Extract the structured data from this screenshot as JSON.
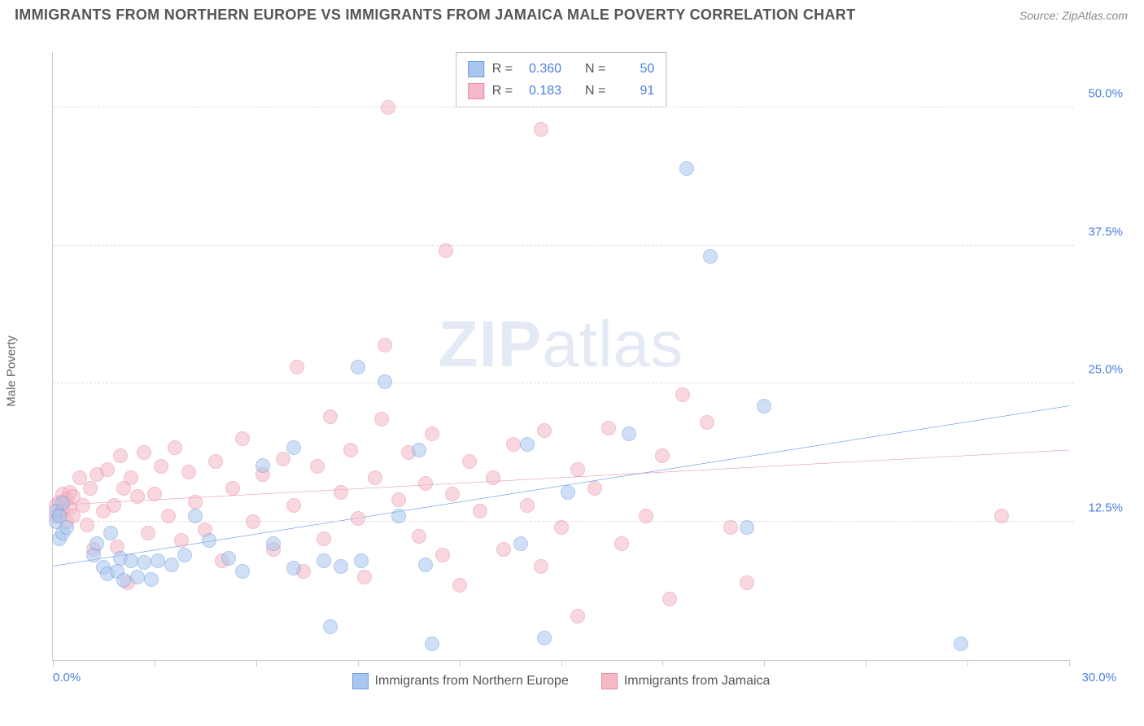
{
  "title": "IMMIGRANTS FROM NORTHERN EUROPE VS IMMIGRANTS FROM JAMAICA MALE POVERTY CORRELATION CHART",
  "source": "Source: ZipAtlas.com",
  "y_axis_label": "Male Poverty",
  "watermark": {
    "strong": "ZIP",
    "light": "atlas"
  },
  "chart": {
    "type": "scatter",
    "xlim": [
      0,
      30
    ],
    "ylim": [
      0,
      55
    ],
    "x_ticks": [
      0,
      3,
      6,
      9,
      12,
      15,
      18,
      21,
      24,
      27,
      30
    ],
    "y_gridlines": [
      12.5,
      25.0,
      37.5,
      50.0
    ],
    "y_tick_labels": [
      "12.5%",
      "25.0%",
      "37.5%",
      "50.0%"
    ],
    "x_start_label": "0.0%",
    "x_end_label": "30.0%",
    "background_color": "#ffffff",
    "grid_color": "#dddddd",
    "axis_color": "#cccccc",
    "tick_label_color": "#4a7fe0",
    "marker_radius": 9,
    "marker_opacity": 0.55,
    "line_width": 2
  },
  "series": [
    {
      "key": "northern_europe",
      "label": "Immigrants from Northern Europe",
      "fill": "#a9c6ee",
      "stroke": "#6f9fe0",
      "line_color": "#1f66e5",
      "R": "0.360",
      "N": "50",
      "trend": {
        "x1": 0,
        "y1": 8.5,
        "x2": 30,
        "y2": 23.0
      },
      "points": [
        [
          0.1,
          12.5
        ],
        [
          0.1,
          13.5
        ],
        [
          0.2,
          11.0
        ],
        [
          0.2,
          13.0
        ],
        [
          0.3,
          11.5
        ],
        [
          0.3,
          14.2
        ],
        [
          0.4,
          12.0
        ],
        [
          1.2,
          9.5
        ],
        [
          1.3,
          10.5
        ],
        [
          1.5,
          8.4
        ],
        [
          1.6,
          7.8
        ],
        [
          1.7,
          11.5
        ],
        [
          1.9,
          8.0
        ],
        [
          2.0,
          9.2
        ],
        [
          2.1,
          7.2
        ],
        [
          2.3,
          9.0
        ],
        [
          2.5,
          7.5
        ],
        [
          2.7,
          8.8
        ],
        [
          2.9,
          7.3
        ],
        [
          3.1,
          9.0
        ],
        [
          3.5,
          8.6
        ],
        [
          3.9,
          9.5
        ],
        [
          4.2,
          13.0
        ],
        [
          4.6,
          10.8
        ],
        [
          5.2,
          9.2
        ],
        [
          5.6,
          8.0
        ],
        [
          6.2,
          17.6
        ],
        [
          6.5,
          10.5
        ],
        [
          7.1,
          8.3
        ],
        [
          7.1,
          19.2
        ],
        [
          8.0,
          9.0
        ],
        [
          8.2,
          3.0
        ],
        [
          8.5,
          8.5
        ],
        [
          9.0,
          26.5
        ],
        [
          9.1,
          9.0
        ],
        [
          9.8,
          25.2
        ],
        [
          10.2,
          13.0
        ],
        [
          10.8,
          19.0
        ],
        [
          11.0,
          8.6
        ],
        [
          11.2,
          1.5
        ],
        [
          13.8,
          10.5
        ],
        [
          14.0,
          19.5
        ],
        [
          14.5,
          2.0
        ],
        [
          15.2,
          15.2
        ],
        [
          17.0,
          20.5
        ],
        [
          18.7,
          44.5
        ],
        [
          19.4,
          36.5
        ],
        [
          20.5,
          12.0
        ],
        [
          21.0,
          23.0
        ],
        [
          26.8,
          1.5
        ]
      ]
    },
    {
      "key": "jamaica",
      "label": "Immigrants from Jamaica",
      "fill": "#f4b8c6",
      "stroke": "#e88ca3",
      "line_color": "#e36f8f",
      "R": "0.183",
      "N": "91",
      "trend": {
        "x1": 0,
        "y1": 14.0,
        "x2": 30,
        "y2": 19.0
      },
      "points": [
        [
          0.1,
          14.0
        ],
        [
          0.1,
          13.0
        ],
        [
          0.2,
          14.3
        ],
        [
          0.2,
          13.2
        ],
        [
          0.3,
          15.0
        ],
        [
          0.3,
          13.6
        ],
        [
          0.4,
          12.5
        ],
        [
          0.4,
          14.5
        ],
        [
          0.5,
          13.8
        ],
        [
          0.5,
          15.2
        ],
        [
          0.6,
          13.0
        ],
        [
          0.6,
          14.8
        ],
        [
          0.8,
          16.5
        ],
        [
          0.9,
          14.0
        ],
        [
          1.0,
          12.2
        ],
        [
          1.1,
          15.5
        ],
        [
          1.2,
          10.0
        ],
        [
          1.3,
          16.8
        ],
        [
          1.5,
          13.5
        ],
        [
          1.6,
          17.2
        ],
        [
          1.8,
          14.0
        ],
        [
          1.9,
          10.2
        ],
        [
          2.0,
          18.5
        ],
        [
          2.1,
          15.5
        ],
        [
          2.2,
          7.0
        ],
        [
          2.3,
          16.5
        ],
        [
          2.5,
          14.8
        ],
        [
          2.7,
          18.8
        ],
        [
          2.8,
          11.5
        ],
        [
          3.0,
          15.0
        ],
        [
          3.2,
          17.5
        ],
        [
          3.4,
          13.0
        ],
        [
          3.6,
          19.2
        ],
        [
          3.8,
          10.8
        ],
        [
          4.0,
          17.0
        ],
        [
          4.2,
          14.3
        ],
        [
          4.5,
          11.8
        ],
        [
          4.8,
          18.0
        ],
        [
          5.0,
          9.0
        ],
        [
          5.3,
          15.5
        ],
        [
          5.6,
          20.0
        ],
        [
          5.9,
          12.5
        ],
        [
          6.2,
          16.8
        ],
        [
          6.5,
          10.0
        ],
        [
          6.8,
          18.2
        ],
        [
          7.1,
          14.0
        ],
        [
          7.2,
          26.5
        ],
        [
          7.4,
          8.0
        ],
        [
          7.8,
          17.5
        ],
        [
          8.0,
          11.0
        ],
        [
          8.2,
          22.0
        ],
        [
          8.5,
          15.2
        ],
        [
          8.8,
          19.0
        ],
        [
          9.0,
          12.8
        ],
        [
          9.2,
          7.5
        ],
        [
          9.5,
          16.5
        ],
        [
          9.7,
          21.8
        ],
        [
          9.8,
          28.5
        ],
        [
          9.9,
          50.0
        ],
        [
          10.2,
          14.5
        ],
        [
          10.5,
          18.8
        ],
        [
          10.8,
          11.2
        ],
        [
          11.0,
          16.0
        ],
        [
          11.2,
          20.5
        ],
        [
          11.5,
          9.5
        ],
        [
          11.6,
          37.0
        ],
        [
          11.8,
          15.0
        ],
        [
          12.0,
          6.8
        ],
        [
          12.3,
          18.0
        ],
        [
          12.6,
          13.5
        ],
        [
          13.0,
          16.5
        ],
        [
          13.3,
          10.0
        ],
        [
          13.6,
          19.5
        ],
        [
          14.0,
          14.0
        ],
        [
          14.4,
          8.5
        ],
        [
          14.4,
          48.0
        ],
        [
          14.5,
          20.8
        ],
        [
          15.0,
          12.0
        ],
        [
          15.5,
          4.0
        ],
        [
          15.5,
          17.2
        ],
        [
          16.0,
          15.5
        ],
        [
          16.4,
          21.0
        ],
        [
          16.8,
          10.5
        ],
        [
          17.5,
          13.0
        ],
        [
          18.0,
          18.5
        ],
        [
          18.2,
          5.5
        ],
        [
          18.6,
          24.0
        ],
        [
          19.3,
          21.5
        ],
        [
          20.0,
          12.0
        ],
        [
          20.5,
          7.0
        ],
        [
          28.0,
          13.0
        ]
      ]
    }
  ],
  "legend": {
    "r_label": "R =",
    "n_label": "N ="
  }
}
